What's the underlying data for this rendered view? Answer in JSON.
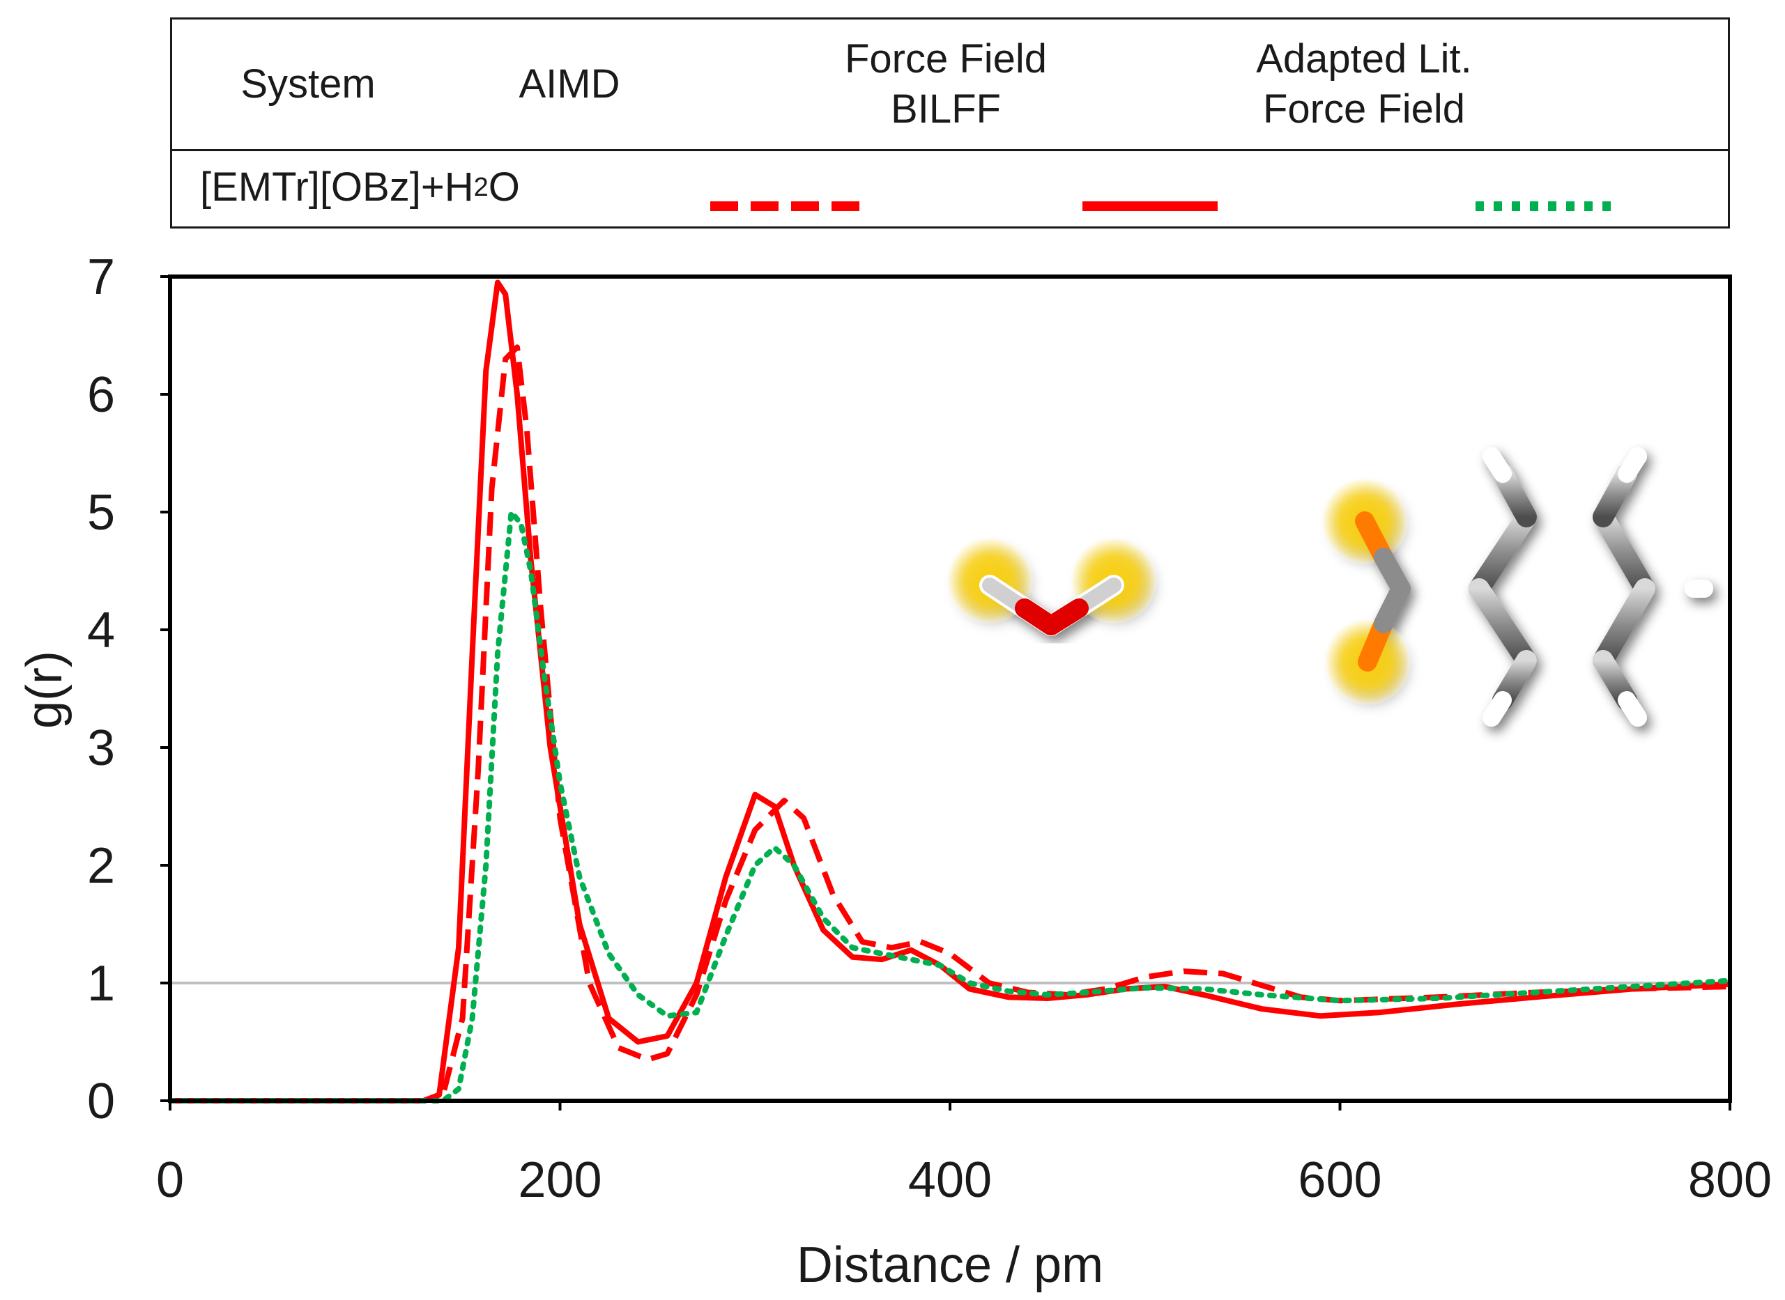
{
  "legend_table": {
    "headers": [
      "System",
      "AIMD",
      "Force Field\nBILFF",
      "Adapted Lit.\nForce Field"
    ],
    "system_prefix": "[EMTr][OBz]+H",
    "system_sub": "2",
    "system_suffix": "O"
  },
  "colors": {
    "aimd": "#ff0000",
    "bilff": "#ff0000",
    "lit": "#00b050",
    "reference": "#bfbfbf"
  },
  "chart_data": {
    "type": "line",
    "title": "",
    "xlabel": "Distance / pm",
    "ylabel": "g(r)",
    "xlim": [
      0,
      800
    ],
    "ylim": [
      0,
      7
    ],
    "xticks": [
      0,
      200,
      400,
      600,
      800
    ],
    "yticks": [
      0,
      1,
      2,
      3,
      4,
      5,
      6,
      7
    ],
    "reference_line": 1,
    "series": [
      {
        "name": "AIMD",
        "style": "dashed",
        "x": [
          0,
          130,
          140,
          150,
          158,
          165,
          172,
          178,
          183,
          190,
          200,
          215,
          230,
          245,
          255,
          270,
          285,
          300,
          315,
          325,
          340,
          355,
          370,
          385,
          400,
          420,
          440,
          460,
          480,
          500,
          520,
          540,
          560,
          580,
          600,
          650,
          700,
          750,
          800
        ],
        "y": [
          0,
          0,
          0.05,
          0.7,
          2.8,
          5.2,
          6.3,
          6.4,
          5.7,
          4.2,
          2.4,
          1.0,
          0.45,
          0.35,
          0.4,
          0.9,
          1.7,
          2.3,
          2.55,
          2.4,
          1.75,
          1.35,
          1.3,
          1.35,
          1.25,
          1.0,
          0.92,
          0.9,
          0.95,
          1.05,
          1.1,
          1.08,
          0.98,
          0.88,
          0.85,
          0.88,
          0.92,
          0.95,
          0.97
        ]
      },
      {
        "name": "Force Field BILFF",
        "style": "solid",
        "x": [
          0,
          130,
          138,
          148,
          155,
          162,
          168,
          172,
          178,
          185,
          195,
          210,
          225,
          240,
          255,
          270,
          285,
          300,
          310,
          320,
          335,
          350,
          365,
          380,
          395,
          410,
          430,
          450,
          470,
          490,
          510,
          530,
          560,
          590,
          620,
          660,
          700,
          750,
          800
        ],
        "y": [
          0,
          0,
          0.05,
          1.3,
          3.8,
          6.2,
          6.95,
          6.85,
          6.0,
          4.6,
          3.0,
          1.5,
          0.7,
          0.5,
          0.55,
          1.0,
          1.9,
          2.6,
          2.5,
          2.0,
          1.45,
          1.22,
          1.2,
          1.28,
          1.15,
          0.95,
          0.88,
          0.87,
          0.9,
          0.95,
          0.97,
          0.9,
          0.78,
          0.72,
          0.75,
          0.82,
          0.88,
          0.95,
          0.99
        ]
      },
      {
        "name": "Adapted Lit. Force Field",
        "style": "dotted",
        "x": [
          0,
          140,
          148,
          155,
          162,
          168,
          175,
          180,
          185,
          192,
          200,
          210,
          225,
          240,
          255,
          270,
          285,
          300,
          310,
          320,
          335,
          350,
          365,
          380,
          395,
          410,
          430,
          450,
          470,
          500,
          530,
          560,
          600,
          650,
          700,
          750,
          800
        ],
        "y": [
          0,
          0,
          0.1,
          0.7,
          2.0,
          3.8,
          5.0,
          4.9,
          4.5,
          3.6,
          2.7,
          1.9,
          1.25,
          0.9,
          0.72,
          0.75,
          1.4,
          2.0,
          2.15,
          2.0,
          1.55,
          1.3,
          1.25,
          1.2,
          1.15,
          1.0,
          0.93,
          0.9,
          0.92,
          0.96,
          0.95,
          0.9,
          0.85,
          0.87,
          0.92,
          0.97,
          1.02
        ]
      }
    ]
  }
}
